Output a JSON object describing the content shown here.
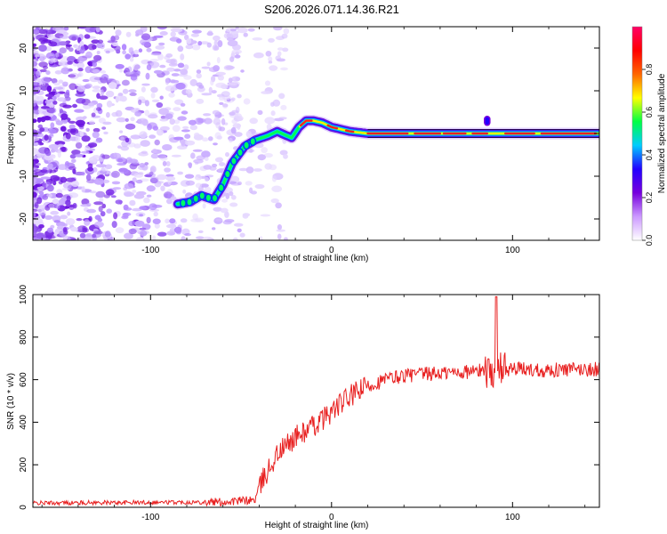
{
  "title": "S206.2026.071.14.36.R21",
  "chart_data": [
    {
      "type": "heatmap",
      "name": "spectrogram",
      "xlabel": "Height of straight line (km)",
      "ylabel": "Frequency (Hz)",
      "xlim": [
        -165,
        148
      ],
      "ylim": [
        -25,
        25
      ],
      "xticks": [
        -100,
        0,
        100
      ],
      "yticks": [
        -20,
        -10,
        0,
        10,
        20
      ],
      "colorbar": {
        "label": "Normalized spectral amplitude",
        "range": [
          0,
          1
        ],
        "ticks": [
          "0.0",
          "0.2",
          "0.4",
          "0.6",
          "0.8"
        ],
        "colors": [
          "#ffffff",
          "#cc99ff",
          "#7700dd",
          "#2200ff",
          "#00ccff",
          "#00ff44",
          "#ffff00",
          "#ff6600",
          "#ff0000",
          "#ff0066"
        ]
      },
      "ridge": {
        "x": [
          -85,
          -78,
          -72,
          -65,
          -60,
          -55,
          -48,
          -42,
          -35,
          -30,
          -26,
          -22,
          -18,
          -14,
          -10,
          -5,
          0,
          5,
          10,
          20,
          40,
          60,
          80,
          100,
          120,
          148
        ],
        "y": [
          -16.5,
          -16,
          -14.5,
          -15.5,
          -12,
          -7,
          -3,
          -1.5,
          -0.5,
          0.5,
          -0.3,
          -1,
          1.5,
          3,
          3,
          2.5,
          1.5,
          1,
          0.5,
          0,
          0,
          0,
          0,
          0,
          0,
          0
        ]
      }
    },
    {
      "type": "line",
      "name": "snr",
      "xlabel": "Height of straight line (km)",
      "ylabel": "SNR (10 * v/v)",
      "xlim": [
        -165,
        148
      ],
      "ylim": [
        0,
        1000
      ],
      "xticks": [
        -100,
        0,
        100
      ],
      "yticks": [
        0,
        200,
        400,
        600,
        800,
        1000
      ],
      "color": "#e82020",
      "trend": {
        "x": [
          -165,
          -60,
          -42,
          -38,
          -30,
          -20,
          -10,
          0,
          10,
          20,
          30,
          40,
          60,
          80,
          100,
          120,
          148
        ],
        "y": [
          20,
          25,
          35,
          130,
          250,
          330,
          380,
          450,
          520,
          570,
          600,
          620,
          630,
          640,
          650,
          645,
          650
        ]
      }
    }
  ]
}
